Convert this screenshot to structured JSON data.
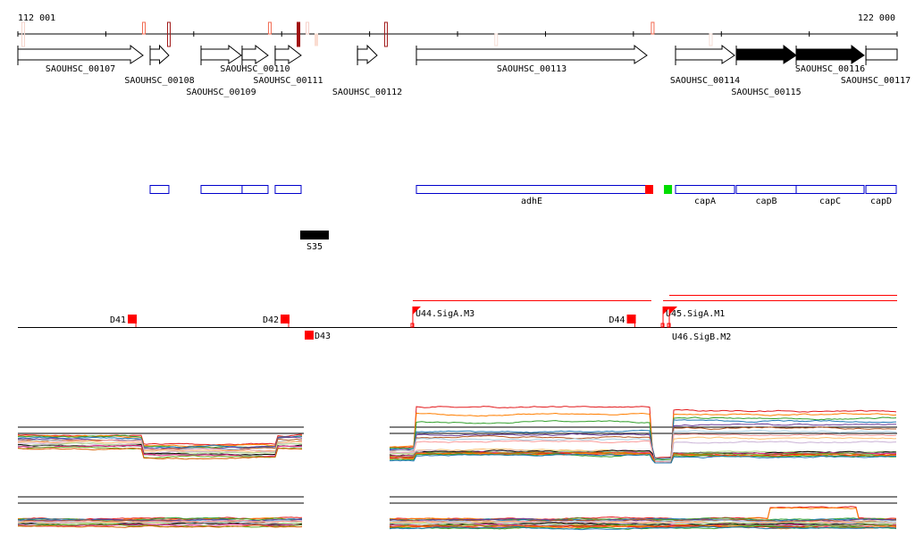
{
  "range": {
    "start": 112001,
    "end": 122000,
    "start_label": "112 001",
    "end_label": "122 000",
    "tick_step": 1000
  },
  "genes": [
    {
      "name": "SAOUHSC_00107",
      "start": 112001,
      "end": 113424,
      "fill": "#ffffff",
      "arrow": true
    },
    {
      "name": "SAOUHSC_00108",
      "start": 113505,
      "end": 113718,
      "fill": "#ffffff",
      "arrow": true
    },
    {
      "name": "SAOUHSC_00109",
      "start": 114084,
      "end": 114541,
      "fill": "#ffffff",
      "arrow": true
    },
    {
      "name": "SAOUHSC_00110",
      "start": 114551,
      "end": 114846,
      "fill": "#ffffff",
      "arrow": true
    },
    {
      "name": "SAOUHSC_00111",
      "start": 114927,
      "end": 115222,
      "fill": "#ffffff",
      "arrow": true
    },
    {
      "name": "SAOUHSC_00112",
      "start": 115863,
      "end": 116086,
      "fill": "#ffffff",
      "arrow": true
    },
    {
      "name": "SAOUHSC_00113",
      "start": 116533,
      "end": 119155,
      "fill": "#ffffff",
      "arrow": true
    },
    {
      "name": "SAOUHSC_00114",
      "start": 119480,
      "end": 120151,
      "fill": "#ffffff",
      "arrow": true
    },
    {
      "name": "SAOUHSC_00115",
      "start": 120171,
      "end": 120852,
      "fill": "#000000",
      "arrow": true
    },
    {
      "name": "SAOUHSC_00116",
      "start": 120852,
      "end": 121624,
      "fill": "#000000",
      "arrow": true
    },
    {
      "name": "SAOUHSC_00117",
      "start": 121645,
      "end": 122000,
      "fill": "#ffffff",
      "arrow": false
    }
  ],
  "axis_marks": [
    {
      "pos": 112062,
      "color": "#f5d5cc",
      "filled": false,
      "side": "both"
    },
    {
      "pos": 113434,
      "color": "#f26a50",
      "filled": false,
      "side": "above"
    },
    {
      "pos": 113718,
      "color": "#a01818",
      "filled": false,
      "side": "both"
    },
    {
      "pos": 114866,
      "color": "#f26a50",
      "filled": false,
      "side": "above"
    },
    {
      "pos": 115192,
      "color": "#a01010",
      "filled": true,
      "side": "both"
    },
    {
      "pos": 115294,
      "color": "#f5d0c8",
      "filled": false,
      "side": "above"
    },
    {
      "pos": 115395,
      "color": "#fadcd0",
      "filled": true,
      "side": "below"
    },
    {
      "pos": 116187,
      "color": "#a01818",
      "filled": false,
      "side": "both"
    },
    {
      "pos": 117440,
      "color": "#f5ddd5",
      "filled": false,
      "side": "below"
    },
    {
      "pos": 119220,
      "color": "#f26a50",
      "filled": false,
      "side": "above"
    },
    {
      "pos": 119881,
      "color": "#f5ddd5",
      "filled": false,
      "side": "below"
    }
  ],
  "annotations": [
    {
      "label": "",
      "start": 113505,
      "end": 113718,
      "type": "box"
    },
    {
      "label": "",
      "start": 114084,
      "end": 114551,
      "type": "box"
    },
    {
      "label": "",
      "start": 114551,
      "end": 114846,
      "type": "box"
    },
    {
      "label": "",
      "start": 114927,
      "end": 115222,
      "type": "box"
    },
    {
      "label": "adhE",
      "start": 116533,
      "end": 119155,
      "type": "box"
    },
    {
      "label": "",
      "start": 119135,
      "end": 119226,
      "type": "red"
    },
    {
      "label": "",
      "start": 119348,
      "end": 119440,
      "type": "green"
    },
    {
      "label": "capA",
      "start": 119480,
      "end": 120151,
      "type": "box"
    },
    {
      "label": "capB",
      "start": 120171,
      "end": 120852,
      "type": "box"
    },
    {
      "label": "capC",
      "start": 120852,
      "end": 121624,
      "type": "box"
    },
    {
      "label": "capD",
      "start": 121645,
      "end": 121990,
      "type": "box"
    }
  ],
  "srna": [
    {
      "label": "S35",
      "start": 115212,
      "end": 115537
    }
  ],
  "terminators": [
    {
      "label": "D41",
      "pos": 113343,
      "strand": "+"
    },
    {
      "label": "D42",
      "pos": 115080,
      "strand": "+"
    },
    {
      "label": "D43",
      "pos": 115263,
      "strand": "-"
    },
    {
      "label": "D44",
      "pos": 119018,
      "strand": "+"
    }
  ],
  "promoters": [
    {
      "label": "U44.SigA.M3",
      "pos": 116492,
      "end": 119205,
      "level": 0
    },
    {
      "label": "U45.SigA.M1",
      "pos": 119338,
      "end": 122000,
      "level": 0
    },
    {
      "label": "U46.SigB.M2",
      "pos": 119409,
      "end": 122000,
      "level": 1
    }
  ],
  "colors": {
    "annotation": "#0000cc",
    "feature": "#ff0000",
    "green": "#00dd00"
  }
}
